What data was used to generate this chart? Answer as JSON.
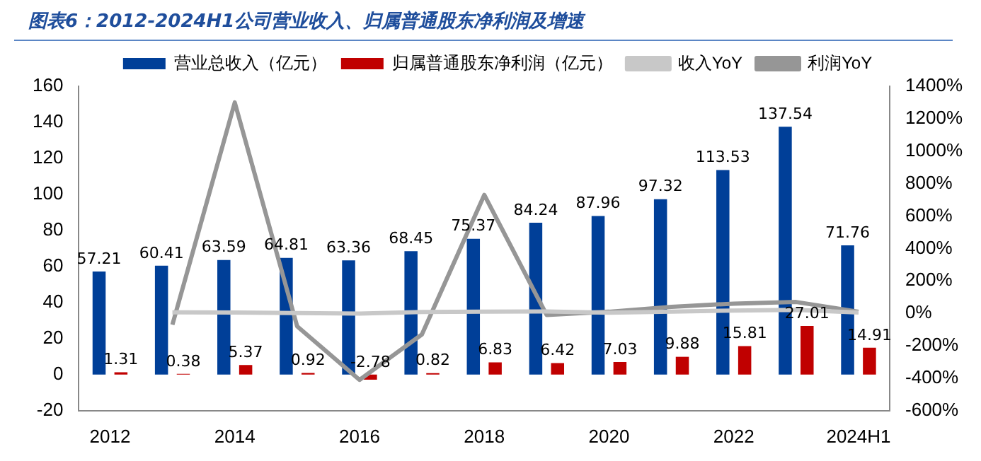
{
  "chart_data": {
    "type": "bar",
    "title": "图表6：2012-2024H1公司营业收入、归属普通股东净利润及增速",
    "categories": [
      "2012",
      null,
      "2014",
      null,
      "2016",
      null,
      "2018",
      null,
      "2020",
      null,
      "2022",
      null,
      "2024H1"
    ],
    "series": [
      {
        "name": "营业总收入（亿元）",
        "color": "#003f98",
        "values": [
          57.21,
          60.41,
          63.59,
          64.81,
          63.36,
          68.45,
          75.37,
          84.24,
          87.96,
          97.32,
          113.53,
          137.54,
          71.76
        ],
        "value_labels": [
          "57.21",
          "60.41",
          "63.59",
          "64.81",
          "63.36",
          "68.45",
          "75.37",
          "84.24",
          "87.96",
          "97.32",
          "113.53",
          "137.54",
          "71.76"
        ]
      },
      {
        "name": "归属普通股东净利润（亿元）",
        "color": "#c00000",
        "values": [
          1.31,
          0.38,
          5.37,
          0.92,
          -2.78,
          0.82,
          6.83,
          6.42,
          7.03,
          9.88,
          15.81,
          27.01,
          14.91
        ],
        "value_labels": [
          "1.31",
          "0.38",
          "5.37",
          "0.92",
          "-2.78",
          "0.82",
          "6.83",
          "6.42",
          "7.03",
          "9.88",
          "15.81",
          "27.01",
          "14.91"
        ]
      },
      {
        "name": "收入YoY",
        "type": "line",
        "axis": "y2",
        "color": "#c8c8c8",
        "values": [
          null,
          6,
          5,
          2,
          -2,
          8,
          10,
          12,
          4,
          11,
          17,
          21,
          5
        ]
      },
      {
        "name": "利润YoY",
        "type": "line",
        "axis": "y2",
        "color": "#969696",
        "values": [
          null,
          -70,
          1300,
          -80,
          -410,
          -130,
          730,
          -10,
          10,
          40,
          60,
          70,
          10
        ]
      }
    ],
    "ylim": [
      -20,
      160
    ],
    "yticks": [
      -20,
      0,
      20,
      40,
      60,
      80,
      100,
      120,
      140,
      160
    ],
    "y2lim": [
      -600,
      1400
    ],
    "y2ticks": [
      {
        "value": -600,
        "label": "-600%"
      },
      {
        "value": -400,
        "label": "-400%"
      },
      {
        "value": -200,
        "label": "-200%"
      },
      {
        "value": 0,
        "label": "0%"
      },
      {
        "value": 200,
        "label": "200%"
      },
      {
        "value": 400,
        "label": "400%"
      },
      {
        "value": 600,
        "label": "600%"
      },
      {
        "value": 800,
        "label": "800%"
      },
      {
        "value": 1000,
        "label": "1000%"
      },
      {
        "value": 1200,
        "label": "1200%"
      },
      {
        "value": 1400,
        "label": "1400%"
      }
    ],
    "grid": false,
    "legend": "top",
    "marker": "none",
    "line_style": "solid"
  }
}
